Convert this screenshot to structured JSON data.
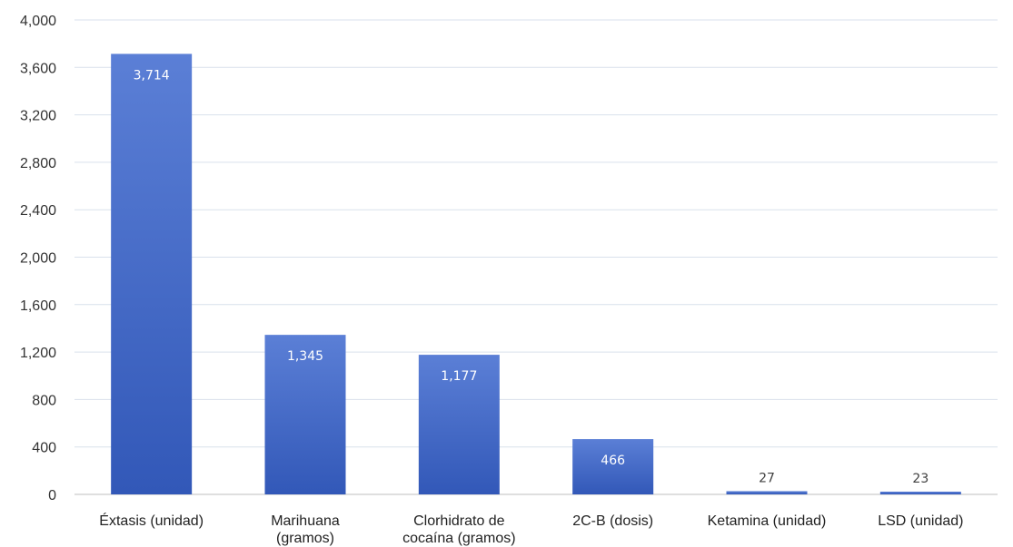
{
  "chart_data": {
    "type": "bar",
    "categories": [
      "Éxtasis (unidad)",
      "Marihuana (gramos)",
      "Clorhidrato de cocaína (gramos)",
      "2C-B (dosis)",
      "Ketamina (unidad)",
      "LSD (unidad)"
    ],
    "category_lines": [
      [
        "Éxtasis (unidad)"
      ],
      [
        "Marihuana",
        "(gramos)"
      ],
      [
        "Clorhidrato de",
        "cocaína (gramos)"
      ],
      [
        "2C-B (dosis)"
      ],
      [
        "Ketamina (unidad)"
      ],
      [
        "LSD (unidad)"
      ]
    ],
    "values": [
      3714,
      1345,
      1177,
      466,
      27,
      23
    ],
    "value_labels": [
      "3,714",
      "1,345",
      "1,177",
      "466",
      "27",
      "23"
    ],
    "title": "",
    "xlabel": "",
    "ylabel": "",
    "ylim": [
      0,
      4000
    ],
    "yticks": [
      0,
      400,
      800,
      1200,
      1600,
      2000,
      2400,
      2800,
      3200,
      3600,
      4000
    ],
    "ytick_labels": [
      "0",
      "400",
      "800",
      "1,200",
      "1,600",
      "2,000",
      "2,400",
      "2,800",
      "3,200",
      "3,600",
      "4,000"
    ],
    "grid": true,
    "legend": "none",
    "colors": {
      "bar_top": "#5b7fd6",
      "bar_bottom": "#3258b8",
      "label_inside": "#ffffff",
      "label_outside": "#404040",
      "grid": "#d9e1ec",
      "axis": "#bfbfbf"
    }
  }
}
